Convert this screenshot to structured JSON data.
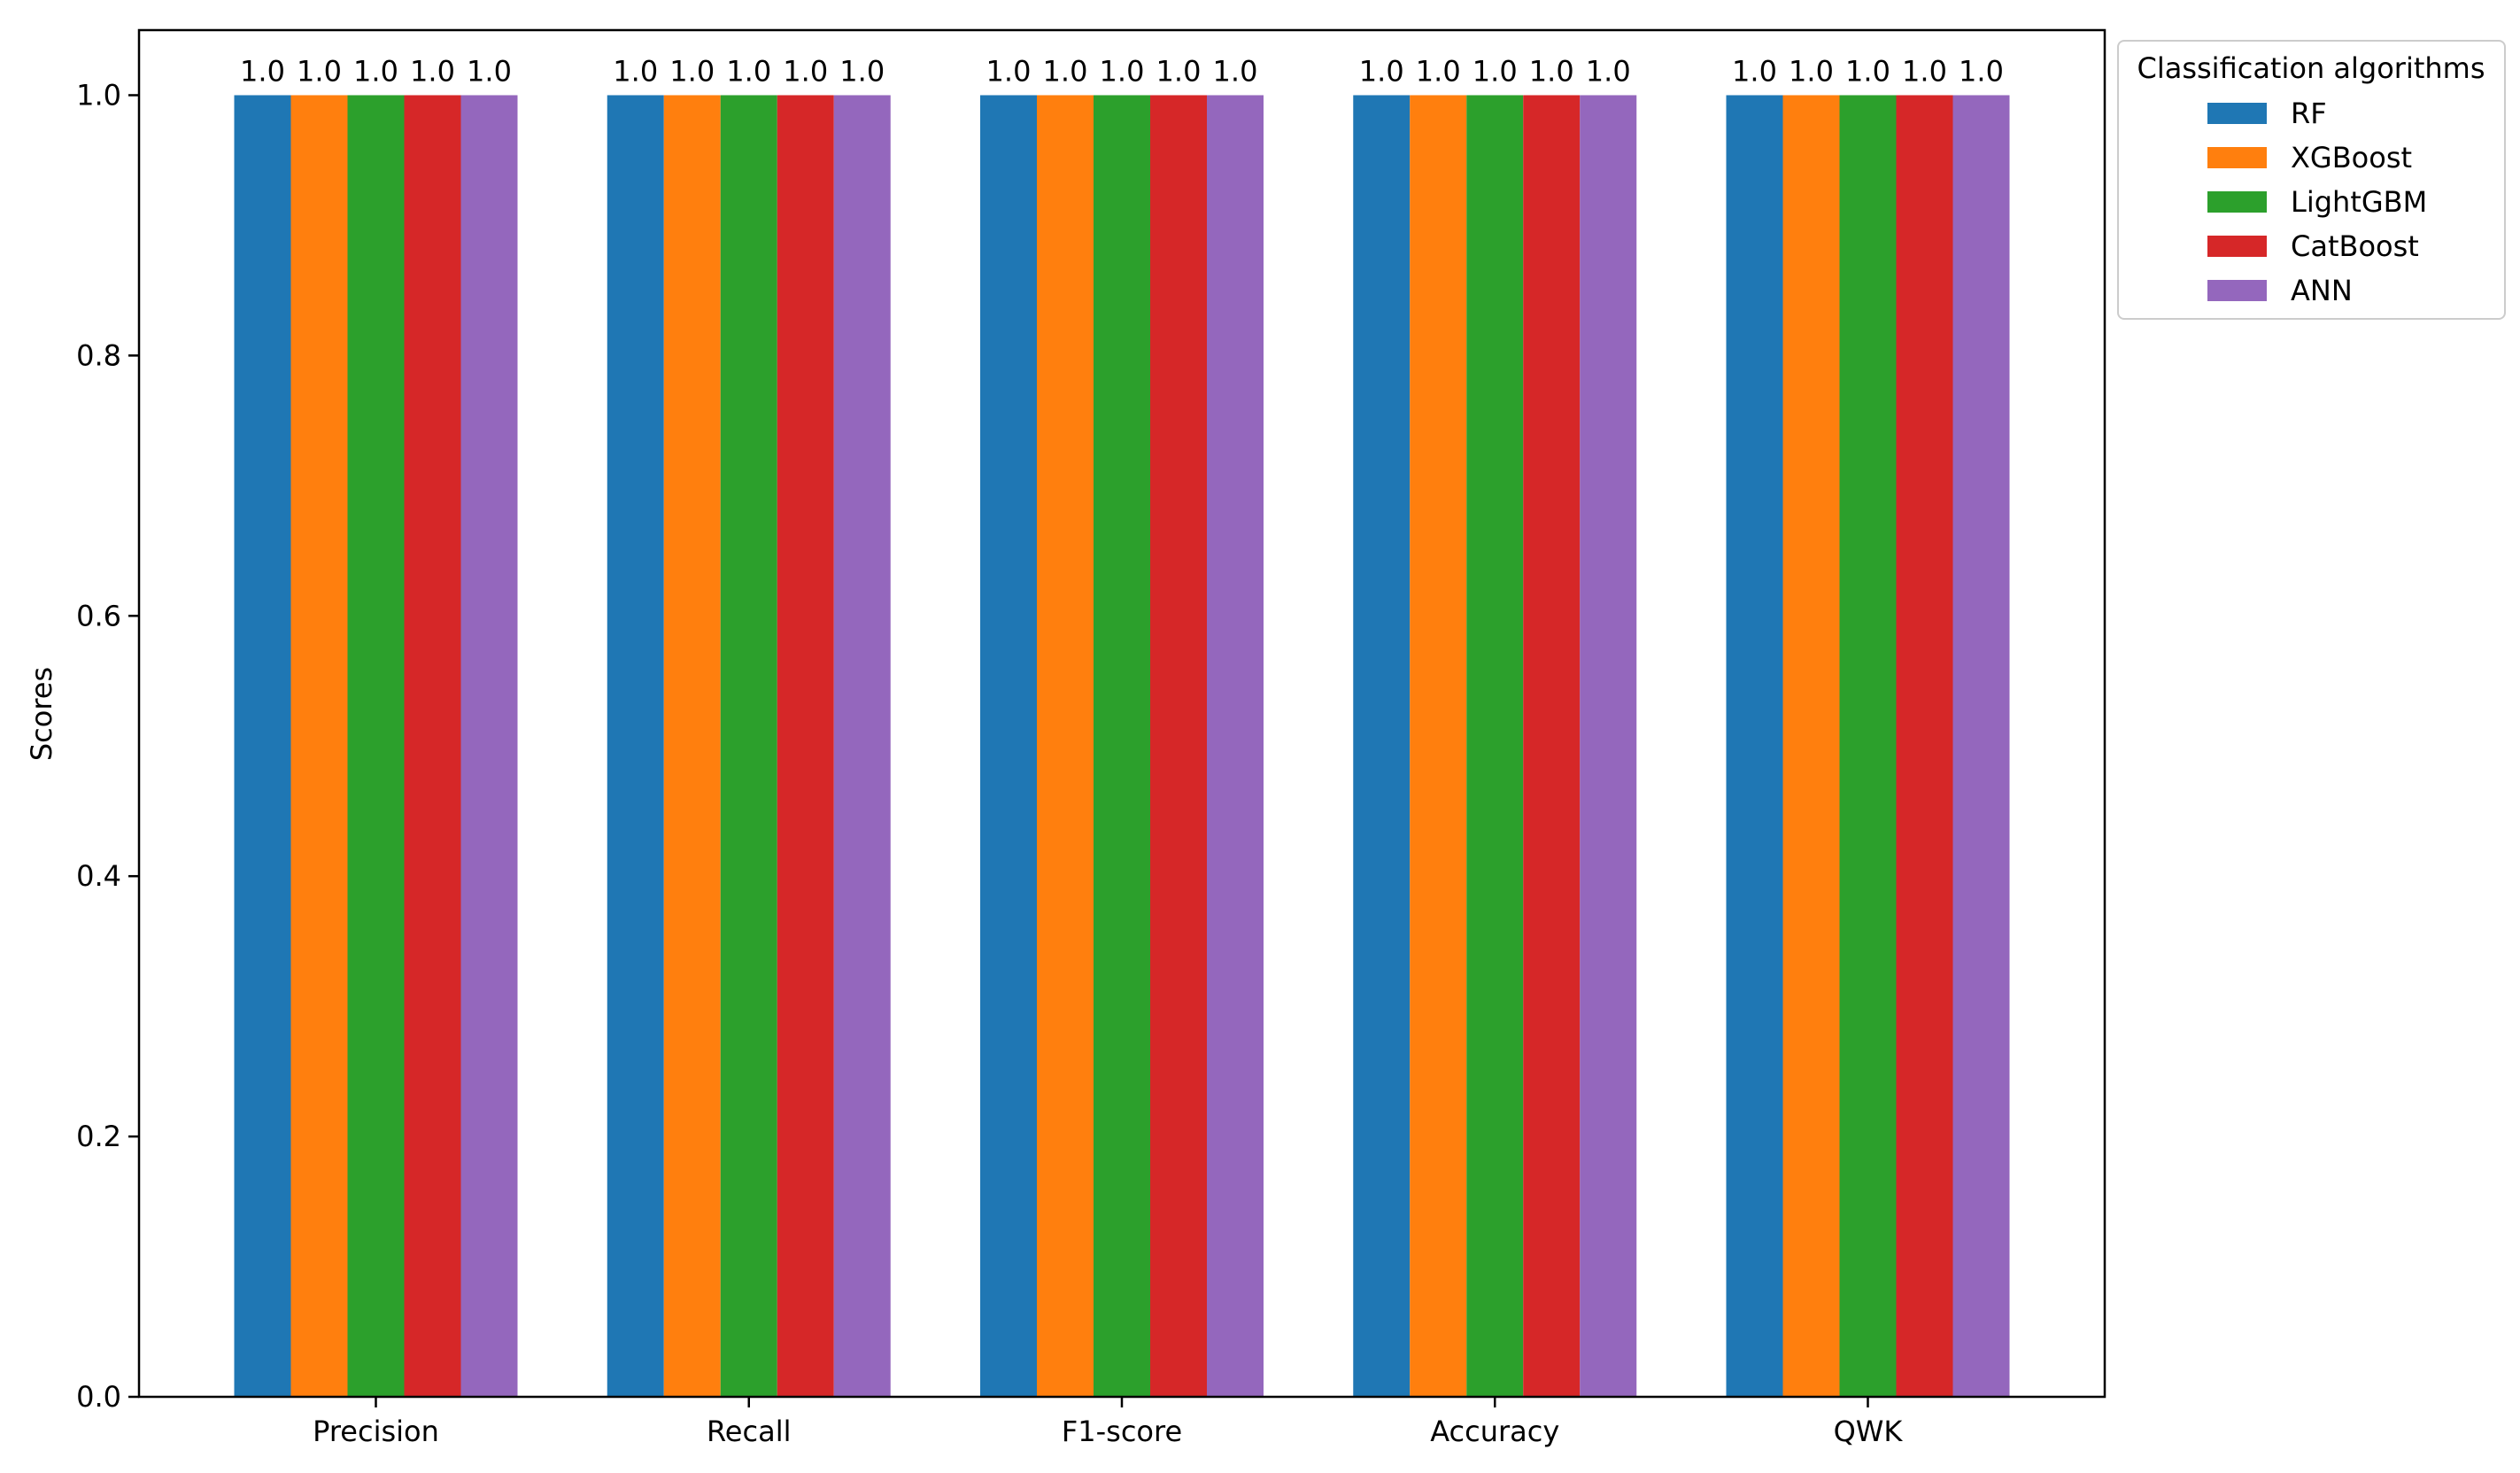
{
  "chart_data": {
    "type": "bar",
    "title": "",
    "xlabel": "",
    "ylabel": "Scores",
    "ylim": [
      0,
      1.05
    ],
    "yticks": [
      "0.0",
      "0.2",
      "0.4",
      "0.6",
      "0.8",
      "1.0"
    ],
    "ytick_values": [
      0,
      0.2,
      0.4,
      0.6,
      0.8,
      1.0
    ],
    "categories": [
      "Precision",
      "Recall",
      "F1-score",
      "Accuracy",
      "QWK"
    ],
    "series": [
      {
        "name": "RF",
        "color": "#1f77b4",
        "values": [
          1.0,
          1.0,
          1.0,
          1.0,
          1.0
        ]
      },
      {
        "name": "XGBoost",
        "color": "#ff7f0e",
        "values": [
          1.0,
          1.0,
          1.0,
          1.0,
          1.0
        ]
      },
      {
        "name": "LightGBM",
        "color": "#2ca02c",
        "values": [
          1.0,
          1.0,
          1.0,
          1.0,
          1.0
        ]
      },
      {
        "name": "CatBoost",
        "color": "#d62728",
        "values": [
          1.0,
          1.0,
          1.0,
          1.0,
          1.0
        ]
      },
      {
        "name": "ANN",
        "color": "#9467bd",
        "values": [
          1.0,
          1.0,
          1.0,
          1.0,
          1.0
        ]
      }
    ],
    "data_labels": "1.0",
    "legend": {
      "title": "Classification algorithms",
      "placement": "outside-top-right"
    },
    "grid": false
  }
}
